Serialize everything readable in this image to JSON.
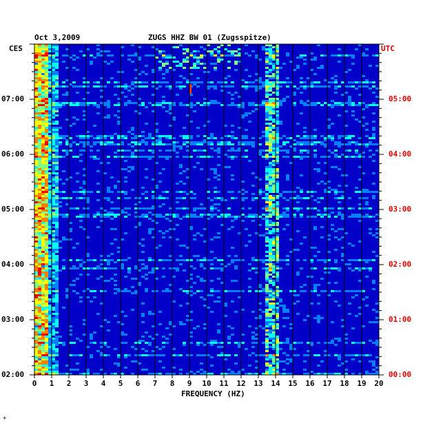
{
  "header": {
    "date": "Oct 3,2009",
    "station": "ZUGS HHZ BW 01 (Zugsspitze)"
  },
  "axes": {
    "left_zone": "CES",
    "right_zone": "UTC",
    "xlabel": "FREQUENCY (HZ)"
  },
  "colors": {
    "background": "#0000c8",
    "left_labels": "#000000",
    "right_labels": "#e00000",
    "grid": "#000000"
  },
  "footer_mark": "*",
  "chart_data": {
    "type": "heatmap",
    "title": "ZUGS HHZ BW 01 (Zugsspitze)",
    "subtitle": "Oct 3,2009",
    "xlabel": "FREQUENCY (HZ)",
    "ylabel": "",
    "xlim": [
      0,
      20
    ],
    "x_ticks": [
      "0",
      "1",
      "2",
      "3",
      "4",
      "5",
      "6",
      "7",
      "8",
      "9",
      "10",
      "11",
      "12",
      "13",
      "14",
      "15",
      "16",
      "17",
      "18",
      "19",
      "20"
    ],
    "ylim_hours": [
      2,
      8
    ],
    "y_ticks_left_ces": [
      "07:00",
      "06:00",
      "05:00",
      "04:00",
      "03:00",
      "02:00"
    ],
    "y_ticks_right_utc": [
      "05:00",
      "04:00",
      "03:00",
      "02:00",
      "01:00",
      "00:00"
    ],
    "y_tick_hours": [
      7,
      6,
      5,
      4,
      3,
      2
    ],
    "colorscale": [
      "#0000a0",
      "#0000ff",
      "#0080ff",
      "#00ffff",
      "#80ff80",
      "#ffff00",
      "#ff8000",
      "#ff0000"
    ],
    "features": [
      {
        "name": "low-frequency noise band",
        "freq_range_hz": [
          0.0,
          0.8
        ],
        "intensity": "high"
      },
      {
        "name": "persistent band",
        "freq_range_hz": [
          13.4,
          14.2
        ],
        "intensity": "medium"
      },
      {
        "name": "transient at 07:12 CES",
        "freq_range_hz": [
          9.0,
          9.1
        ],
        "intensity": "high"
      }
    ]
  }
}
